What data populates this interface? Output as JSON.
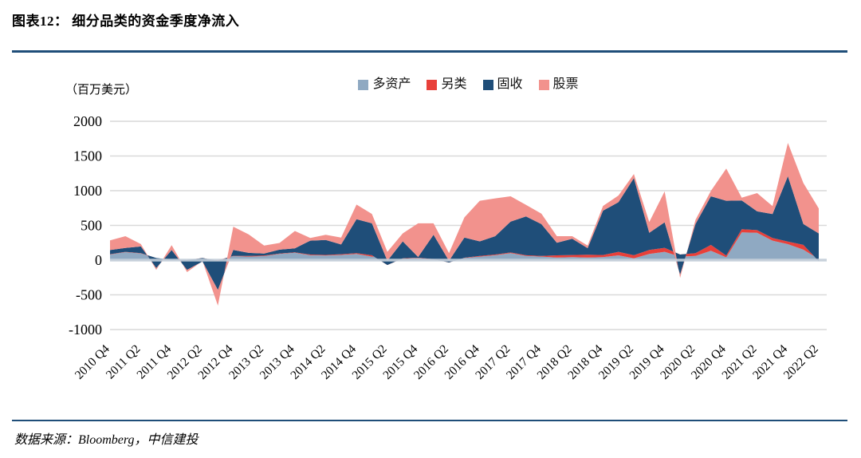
{
  "header": {
    "title": "图表12：  细分品类的资金季度净流入"
  },
  "footer": {
    "source": "数据来源：Bloomberg，中信建投"
  },
  "chart_data": {
    "type": "area",
    "stacked": true,
    "title": "细分品类的资金季度净流入",
    "unit_label": "（百万美元）",
    "ylabel": "百万美元",
    "xlabel": "",
    "ylim": [
      -1000,
      2000
    ],
    "yticks": [
      2000,
      1500,
      1000,
      500,
      0,
      -500,
      -1000
    ],
    "x_tick_every": 2,
    "grid": "horizontal",
    "legend_position": "top-center",
    "categories": [
      "2010 Q4",
      "2011 Q1",
      "2011 Q2",
      "2011 Q3",
      "2011 Q4",
      "2012 Q1",
      "2012 Q2",
      "2012 Q3",
      "2012 Q4",
      "2013 Q1",
      "2013 Q2",
      "2013 Q3",
      "2013 Q4",
      "2014 Q1",
      "2014 Q2",
      "2014 Q3",
      "2014 Q4",
      "2015 Q1",
      "2015 Q2",
      "2015 Q3",
      "2015 Q4",
      "2016 Q1",
      "2016 Q2",
      "2016 Q3",
      "2016 Q4",
      "2017 Q1",
      "2017 Q2",
      "2017 Q3",
      "2017 Q4",
      "2018 Q1",
      "2018 Q2",
      "2018 Q3",
      "2018 Q4",
      "2019 Q1",
      "2019 Q2",
      "2019 Q3",
      "2019 Q4",
      "2020 Q1",
      "2020 Q2",
      "2020 Q3",
      "2020 Q4",
      "2021 Q1",
      "2021 Q2",
      "2021 Q3",
      "2021 Q4",
      "2022 Q1",
      "2022 Q2"
    ],
    "series": [
      {
        "name": "多资产",
        "color": "#8FA9C2",
        "values": [
          80,
          115,
          96,
          30,
          5,
          0,
          5,
          0,
          57,
          50,
          57,
          89,
          107,
          70,
          65,
          75,
          90,
          50,
          30,
          20,
          30,
          10,
          20,
          30,
          50,
          70,
          100,
          60,
          50,
          38,
          44,
          38,
          44,
          69,
          27,
          88,
          120,
          50,
          60,
          135,
          40,
          400,
          394,
          280,
          230,
          150,
          15
        ]
      },
      {
        "name": "另类",
        "color": "#E8403A",
        "values": [
          5,
          5,
          5,
          0,
          0,
          0,
          25,
          -10,
          5,
          10,
          10,
          5,
          5,
          10,
          10,
          10,
          10,
          20,
          -100,
          5,
          5,
          5,
          -55,
          5,
          10,
          10,
          10,
          10,
          10,
          31,
          29,
          39,
          29,
          50,
          43,
          58,
          57,
          30,
          40,
          85,
          25,
          46,
          38,
          38,
          38,
          70,
          -30
        ]
      },
      {
        "name": "固收",
        "color": "#1F4E79",
        "values": [
          60,
          55,
          95,
          -145,
          140,
          -140,
          -50,
          -420,
          85,
          45,
          28,
          57,
          58,
          200,
          215,
          140,
          490,
          460,
          60,
          245,
          10,
          350,
          25,
          290,
          210,
          265,
          445,
          560,
          458,
          180,
          234,
          95,
          640,
          716,
          1110,
          248,
          368,
          -290,
          420,
          700,
          790,
          414,
          270,
          345,
          940,
          300,
          400
        ]
      },
      {
        "name": "股票",
        "color": "#F2928D",
        "values": [
          140,
          170,
          35,
          -25,
          70,
          -32,
          5,
          -225,
          335,
          265,
          115,
          96,
          249,
          38,
          75,
          100,
          210,
          135,
          130,
          115,
          485,
          165,
          110,
          290,
          585,
          545,
          365,
          165,
          152,
          96,
          38,
          38,
          67,
          96,
          60,
          154,
          445,
          -45,
          60,
          77,
          465,
          40,
          264,
          115,
          480,
          590,
          360
        ]
      }
    ],
    "colors": {
      "rule": "#1F4E79",
      "gridline": "#D9D9D9",
      "zero_axis": "#C6D0DB",
      "text": "#000000"
    }
  }
}
